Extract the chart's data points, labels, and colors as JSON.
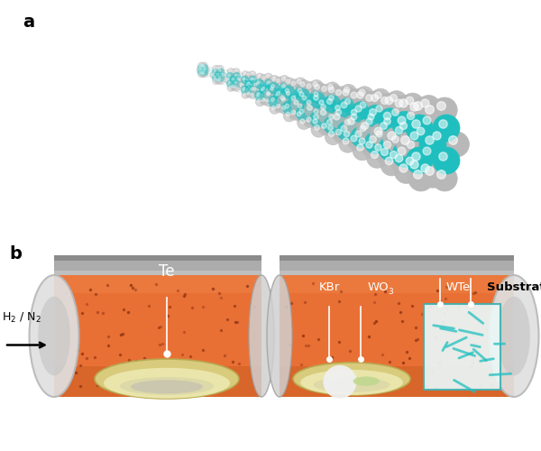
{
  "panel_a_label": "a",
  "panel_b_label": "b",
  "bg_color": "#ffffff",
  "tube_orange": "#E8682A",
  "tube_dot_color": "#8B3010",
  "cap_gray": "#A8A8A8",
  "cap_dark": "#888888",
  "ellipse_cap_face": "#D8D8D8",
  "ellipse_cap_inner": "#C0C0C0",
  "dish_outer": "#D8CF80",
  "dish_inner": "#EDE8B0",
  "dish_rim": "#C8B860",
  "bowl_inner": "#F2EEC8",
  "content_gray": "#C8C4B0",
  "content_white": "#F8F8F8",
  "content_green": "#C0D890",
  "substrate_face": "#EAF8F8",
  "substrate_edge": "#40B0B0",
  "nanowire_teal": "#20C0C0",
  "atom_gray": "#B8B8B8",
  "atom_teal": "#20BFBF",
  "bond_teal": "#20BFBF",
  "bond_gray": "#A0A0A0",
  "white": "#FFFFFF",
  "black": "#000000",
  "te_label": "Te",
  "kbr_label": "KBr",
  "wo3_label": "WO",
  "wo3_sub": "3",
  "wte_label": "WTe",
  "substrate_label": "Substrate",
  "h2n2_label": "H$_2$ / N$_2$",
  "font_label": 14,
  "font_text": 11,
  "font_small": 9
}
